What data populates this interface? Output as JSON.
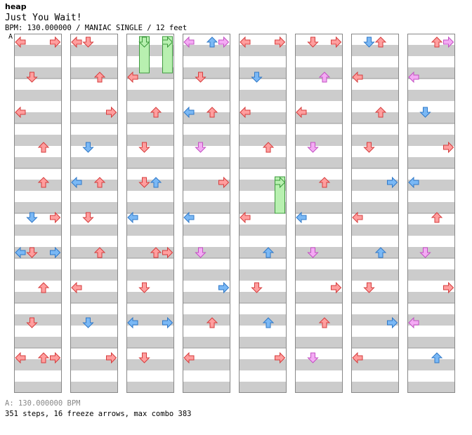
{
  "header": {
    "title": "heap",
    "song_title": "Just You Wait!",
    "bpm_line": "BPM: 130.000000 / MANIAC SINGLE / 12 feet",
    "bpm_marker": "A"
  },
  "footer": {
    "bpm_note": "A: 130.000000 BPM",
    "stats": "351 steps, 16 freeze arrows, max combo 383"
  },
  "colors": {
    "arrow_red": "#ff9e9e",
    "arrow_blue": "#7ab8f5",
    "arrow_pink": "#f4aaf4",
    "freeze_green": "#b8f0b0",
    "stripe_gray": "#cccccc",
    "border": "#888888"
  },
  "chart": {
    "columns": 8,
    "measures_per_column": 8,
    "lanes": [
      "left",
      "down",
      "up",
      "right"
    ],
    "note_legend": {
      "r": "quarter note (red)",
      "b": "eighth note (blue)",
      "p": "sixteenth note (pink)",
      "g": "freeze arrow (green)"
    },
    "notes": [
      [
        [
          0,
          0,
          "r"
        ],
        [
          0,
          3,
          "r"
        ],
        [
          1,
          1,
          "r"
        ],
        [
          2,
          0,
          "r"
        ],
        [
          3,
          2,
          "r"
        ],
        [
          4,
          2,
          "r"
        ],
        [
          5,
          1,
          "b"
        ],
        [
          5,
          3,
          "r"
        ],
        [
          6,
          0,
          "b"
        ],
        [
          6,
          1,
          "r"
        ],
        [
          6,
          3,
          "b"
        ],
        [
          7,
          2,
          "r"
        ],
        [
          8,
          1,
          "r"
        ],
        [
          9,
          0,
          "r"
        ],
        [
          9,
          2,
          "r"
        ],
        [
          9,
          3,
          "r"
        ]
      ],
      [
        [
          0,
          0,
          "r"
        ],
        [
          0,
          1,
          "r"
        ],
        [
          1,
          2,
          "r"
        ],
        [
          2,
          3,
          "r"
        ],
        [
          3,
          1,
          "b"
        ],
        [
          4,
          0,
          "b"
        ],
        [
          4,
          2,
          "r"
        ],
        [
          5,
          1,
          "r"
        ],
        [
          6,
          2,
          "r"
        ],
        [
          7,
          0,
          "r"
        ],
        [
          8,
          1,
          "b"
        ],
        [
          9,
          3,
          "r"
        ]
      ],
      [
        [
          0,
          1,
          "g",
          2
        ],
        [
          0,
          3,
          "g",
          2
        ],
        [
          1,
          0,
          "r"
        ],
        [
          2,
          2,
          "r"
        ],
        [
          3,
          1,
          "r"
        ],
        [
          4,
          1,
          "r"
        ],
        [
          4,
          2,
          "b"
        ],
        [
          5,
          0,
          "b"
        ],
        [
          6,
          2,
          "r"
        ],
        [
          6,
          3,
          "r"
        ],
        [
          7,
          1,
          "r"
        ],
        [
          8,
          0,
          "b"
        ],
        [
          8,
          3,
          "b"
        ],
        [
          9,
          1,
          "r"
        ]
      ],
      [
        [
          0,
          0,
          "p"
        ],
        [
          0,
          2,
          "b"
        ],
        [
          0,
          3,
          "p"
        ],
        [
          1,
          1,
          "r"
        ],
        [
          2,
          0,
          "b"
        ],
        [
          2,
          2,
          "r"
        ],
        [
          3,
          1,
          "p"
        ],
        [
          4,
          3,
          "r"
        ],
        [
          5,
          0,
          "b"
        ],
        [
          6,
          1,
          "p"
        ],
        [
          7,
          3,
          "b"
        ],
        [
          8,
          2,
          "r"
        ],
        [
          9,
          0,
          "r"
        ]
      ],
      [
        [
          0,
          0,
          "r"
        ],
        [
          0,
          3,
          "r"
        ],
        [
          1,
          1,
          "b"
        ],
        [
          2,
          0,
          "r"
        ],
        [
          3,
          2,
          "r"
        ],
        [
          4,
          3,
          "g",
          2
        ],
        [
          5,
          0,
          "r"
        ],
        [
          6,
          2,
          "b"
        ],
        [
          7,
          1,
          "r"
        ],
        [
          8,
          2,
          "b"
        ],
        [
          9,
          3,
          "r"
        ]
      ],
      [
        [
          0,
          1,
          "r"
        ],
        [
          0,
          3,
          "r"
        ],
        [
          1,
          2,
          "p"
        ],
        [
          2,
          0,
          "r"
        ],
        [
          3,
          1,
          "p"
        ],
        [
          4,
          2,
          "r"
        ],
        [
          5,
          0,
          "b"
        ],
        [
          6,
          1,
          "p"
        ],
        [
          7,
          3,
          "r"
        ],
        [
          8,
          2,
          "r"
        ],
        [
          9,
          1,
          "p"
        ]
      ],
      [
        [
          0,
          1,
          "b"
        ],
        [
          0,
          2,
          "r"
        ],
        [
          1,
          0,
          "r"
        ],
        [
          2,
          2,
          "r"
        ],
        [
          3,
          1,
          "r"
        ],
        [
          4,
          3,
          "b"
        ],
        [
          5,
          0,
          "r"
        ],
        [
          6,
          2,
          "b"
        ],
        [
          7,
          1,
          "r"
        ],
        [
          8,
          3,
          "b"
        ],
        [
          9,
          0,
          "r"
        ]
      ],
      [
        [
          0,
          2,
          "r"
        ],
        [
          0,
          3,
          "p"
        ],
        [
          1,
          0,
          "p"
        ],
        [
          2,
          1,
          "b"
        ],
        [
          3,
          3,
          "r"
        ],
        [
          4,
          0,
          "b"
        ],
        [
          5,
          2,
          "r"
        ],
        [
          6,
          1,
          "p"
        ],
        [
          7,
          3,
          "r"
        ],
        [
          8,
          0,
          "p"
        ],
        [
          9,
          2,
          "b"
        ]
      ]
    ]
  }
}
